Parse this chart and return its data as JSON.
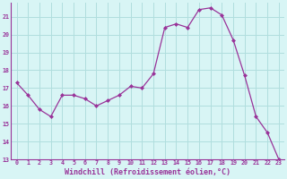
{
  "x": [
    0,
    1,
    2,
    3,
    4,
    5,
    6,
    7,
    8,
    9,
    10,
    11,
    12,
    13,
    14,
    15,
    16,
    17,
    18,
    19,
    20,
    21,
    22,
    23
  ],
  "y": [
    17.3,
    16.6,
    15.8,
    15.4,
    16.6,
    16.6,
    16.4,
    16.0,
    16.3,
    16.6,
    17.1,
    17.0,
    17.8,
    20.4,
    20.6,
    20.4,
    21.4,
    21.5,
    21.1,
    19.7,
    17.7,
    15.4,
    14.5,
    13.0
  ],
  "xlim": [
    -0.5,
    23.5
  ],
  "ylim": [
    13,
    21.8
  ],
  "yticks": [
    13,
    14,
    15,
    16,
    17,
    18,
    19,
    20,
    21
  ],
  "xticks": [
    0,
    1,
    2,
    3,
    4,
    5,
    6,
    7,
    8,
    9,
    10,
    11,
    12,
    13,
    14,
    15,
    16,
    17,
    18,
    19,
    20,
    21,
    22,
    23
  ],
  "line_color": "#993399",
  "marker_color": "#993399",
  "bg_color": "#d8f5f5",
  "grid_color": "#b0dede",
  "xlabel": "Windchill (Refroidissement éolien,°C)",
  "xlabel_color": "#993399",
  "tick_color": "#993399",
  "axis_color": "#993399"
}
